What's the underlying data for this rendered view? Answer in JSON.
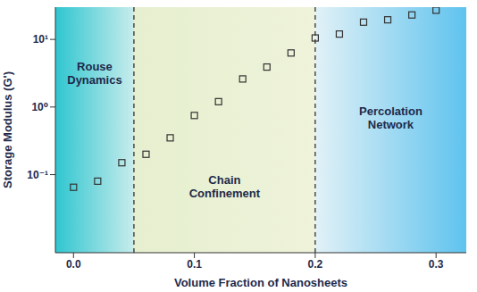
{
  "chart_data": {
    "type": "scatter",
    "x_label": "Volume Fraction of Nanosheets",
    "y_label": "Storage Modulus (G')",
    "x": [
      0,
      0.02,
      0.04,
      0.06,
      0.08,
      0.1,
      0.12,
      0.14,
      0.16,
      0.18,
      0.2,
      0.22,
      0.24,
      0.26,
      0.28,
      0.3
    ],
    "values": [
      0.065,
      0.08,
      0.15,
      0.2,
      0.35,
      0.75,
      1.2,
      2.6,
      3.9,
      6.3,
      10.5,
      12,
      18,
      19.5,
      23,
      27
    ],
    "color": "#333333",
    "marker": "square",
    "log": "y",
    "grid": false,
    "xlim": [
      -0.015,
      0.325
    ],
    "ylim": [
      0.007,
      30
    ],
    "xticks": [
      {
        "value": 0,
        "label": "0.0"
      },
      0.1,
      0.2,
      0.3
    ],
    "yticks": [
      {
        "value": 0.1,
        "label": "10⁻¹"
      },
      {
        "value": 1,
        "label": "10⁰"
      },
      {
        "value": 10,
        "label": "10¹"
      }
    ],
    "boundaries": [
      0.05,
      0.2
    ],
    "regions": [
      {
        "label": "Rouse Dynamics",
        "colors": [
          "#2fc6d0",
          "#c8ecec"
        ]
      },
      {
        "label": "Chain Confinement",
        "colors": [
          "#e6efcf",
          "#eef3da"
        ]
      },
      {
        "label": "Percolation Network",
        "colors": [
          "#e2f1f7",
          "#5fc3ee"
        ]
      }
    ]
  }
}
